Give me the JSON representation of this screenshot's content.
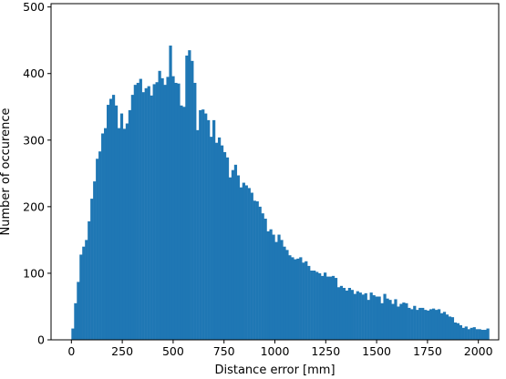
{
  "chart_data": {
    "type": "bar",
    "xlabel": "Distance error [mm]",
    "ylabel": "Number of occurence",
    "xlim": [
      -100,
      2100
    ],
    "ylim": [
      0,
      505
    ],
    "xticks": [
      0,
      250,
      500,
      750,
      1000,
      1250,
      1500,
      1750,
      2000
    ],
    "yticks": [
      0,
      100,
      200,
      300,
      400,
      500
    ],
    "bin_start": 0,
    "bin_width": 13.33,
    "values": [
      17,
      55,
      87,
      128,
      140,
      150,
      178,
      212,
      238,
      272,
      283,
      310,
      318,
      353,
      362,
      368,
      352,
      318,
      340,
      317,
      325,
      345,
      368,
      383,
      386,
      392,
      372,
      378,
      381,
      367,
      384,
      387,
      404,
      393,
      383,
      395,
      442,
      396,
      386,
      385,
      352,
      350,
      427,
      435,
      419,
      386,
      315,
      345,
      346,
      340,
      330,
      305,
      330,
      296,
      304,
      292,
      282,
      274,
      244,
      255,
      263,
      247,
      229,
      236,
      232,
      228,
      221,
      209,
      208,
      200,
      190,
      182,
      163,
      166,
      158,
      147,
      158,
      150,
      140,
      135,
      127,
      124,
      121,
      122,
      124,
      116,
      118,
      111,
      104,
      104,
      102,
      100,
      96,
      101,
      95,
      95,
      96,
      93,
      79,
      81,
      78,
      74,
      78,
      75,
      69,
      73,
      71,
      68,
      70,
      60,
      71,
      67,
      65,
      65,
      55,
      69,
      62,
      60,
      54,
      61,
      50,
      54,
      56,
      55,
      48,
      46,
      51,
      45,
      48,
      48,
      45,
      44,
      46,
      47,
      45,
      46,
      40,
      42,
      38,
      35,
      34,
      26,
      25,
      22,
      18,
      20,
      16,
      18,
      19,
      16,
      16,
      15,
      15,
      17
    ],
    "bar_color": "#1f77b4",
    "grid": false,
    "legend": false
  }
}
